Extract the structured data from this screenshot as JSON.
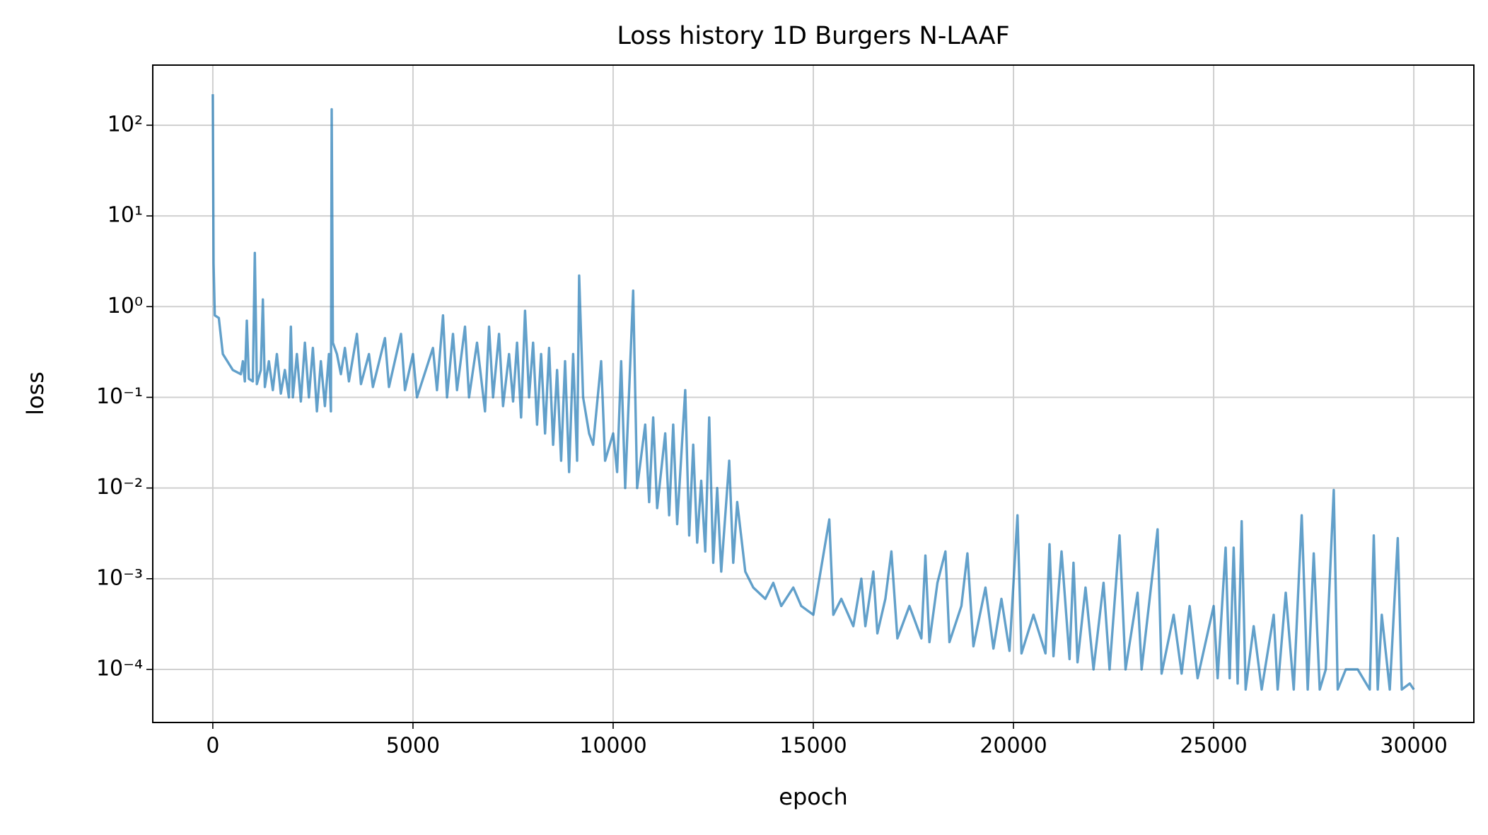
{
  "chart_data": {
    "type": "line",
    "title": "Loss history 1D Burgers N-LAAF",
    "x_label": "epoch",
    "y_label": "loss",
    "log_y": true,
    "grid": true,
    "xlim": [
      -1500,
      31500
    ],
    "xticks": [
      0,
      5000,
      10000,
      15000,
      20000,
      25000,
      30000
    ],
    "ylim": [
      2.6e-05,
      460
    ],
    "yticks": [
      {
        "value": 0.0001,
        "label": "10⁻⁴"
      },
      {
        "value": 0.001,
        "label": "10⁻³"
      },
      {
        "value": 0.01,
        "label": "10⁻²"
      },
      {
        "value": 0.1,
        "label": "10⁻¹"
      },
      {
        "value": 1,
        "label": "10⁰"
      },
      {
        "value": 10,
        "label": "10¹"
      },
      {
        "value": 100,
        "label": "10²"
      }
    ],
    "x": [
      0,
      20,
      50,
      150,
      250,
      500,
      700,
      750,
      800,
      850,
      900,
      1000,
      1050,
      1100,
      1200,
      1250,
      1300,
      1400,
      1500,
      1600,
      1700,
      1800,
      1900,
      1950,
      2000,
      2100,
      2200,
      2300,
      2400,
      2500,
      2600,
      2700,
      2800,
      2900,
      2950,
      2970,
      3000,
      3100,
      3200,
      3300,
      3400,
      3600,
      3700,
      3900,
      4000,
      4300,
      4400,
      4700,
      4800,
      5000,
      5100,
      5500,
      5600,
      5750,
      5850,
      6000,
      6100,
      6300,
      6400,
      6600,
      6800,
      6900,
      7000,
      7150,
      7250,
      7400,
      7500,
      7600,
      7700,
      7800,
      7900,
      8000,
      8100,
      8200,
      8300,
      8400,
      8500,
      8600,
      8700,
      8800,
      8900,
      9000,
      9100,
      9150,
      9250,
      9400,
      9500,
      9700,
      9800,
      10000,
      10100,
      10200,
      10300,
      10500,
      10600,
      10800,
      10900,
      11000,
      11100,
      11300,
      11400,
      11500,
      11600,
      11800,
      11900,
      12000,
      12100,
      12200,
      12300,
      12400,
      12500,
      12600,
      12700,
      12900,
      13000,
      13100,
      13300,
      13500,
      13800,
      14000,
      14200,
      14500,
      14700,
      15000,
      15400,
      15500,
      15700,
      16000,
      16200,
      16300,
      16500,
      16600,
      16800,
      16950,
      17100,
      17400,
      17700,
      17800,
      17900,
      18100,
      18300,
      18400,
      18700,
      18850,
      19000,
      19300,
      19500,
      19700,
      19900,
      20100,
      20200,
      20500,
      20800,
      20900,
      21000,
      21200,
      21400,
      21500,
      21600,
      21800,
      22000,
      22250,
      22400,
      22650,
      22800,
      23100,
      23200,
      23600,
      23700,
      24000,
      24200,
      24400,
      24600,
      25000,
      25100,
      25300,
      25400,
      25500,
      25600,
      25700,
      25800,
      26000,
      26200,
      26500,
      26600,
      26800,
      27000,
      27200,
      27350,
      27500,
      27650,
      27800,
      28000,
      28100,
      28300,
      28600,
      28900,
      29000,
      29100,
      29200,
      29400,
      29600,
      29700,
      29900,
      30000
    ],
    "series": [
      {
        "name": "loss",
        "color": "#1f77b4",
        "values": [
          220,
          3,
          0.8,
          0.75,
          0.3,
          0.2,
          0.18,
          0.25,
          0.15,
          0.7,
          0.16,
          0.15,
          3.9,
          0.14,
          0.2,
          1.2,
          0.13,
          0.25,
          0.12,
          0.3,
          0.11,
          0.2,
          0.1,
          0.6,
          0.1,
          0.3,
          0.09,
          0.4,
          0.1,
          0.35,
          0.07,
          0.25,
          0.08,
          0.3,
          0.07,
          150,
          0.4,
          0.3,
          0.18,
          0.35,
          0.15,
          0.5,
          0.14,
          0.3,
          0.13,
          0.45,
          0.13,
          0.5,
          0.12,
          0.3,
          0.1,
          0.35,
          0.12,
          0.8,
          0.1,
          0.5,
          0.12,
          0.6,
          0.1,
          0.4,
          0.07,
          0.6,
          0.1,
          0.5,
          0.08,
          0.3,
          0.09,
          0.4,
          0.06,
          0.9,
          0.1,
          0.4,
          0.05,
          0.3,
          0.04,
          0.35,
          0.03,
          0.2,
          0.02,
          0.25,
          0.015,
          0.3,
          0.02,
          2.2,
          0.1,
          0.04,
          0.03,
          0.25,
          0.02,
          0.04,
          0.015,
          0.25,
          0.01,
          1.5,
          0.01,
          0.05,
          0.007,
          0.06,
          0.006,
          0.04,
          0.005,
          0.05,
          0.004,
          0.12,
          0.003,
          0.03,
          0.0025,
          0.012,
          0.002,
          0.06,
          0.0015,
          0.01,
          0.0012,
          0.02,
          0.0015,
          0.007,
          0.0012,
          0.0008,
          0.0006,
          0.0009,
          0.0005,
          0.0008,
          0.0005,
          0.0004,
          0.0045,
          0.0004,
          0.0006,
          0.0003,
          0.001,
          0.0003,
          0.0012,
          0.00025,
          0.0006,
          0.002,
          0.00022,
          0.0005,
          0.00022,
          0.0018,
          0.0002,
          0.0009,
          0.002,
          0.0002,
          0.0005,
          0.0019,
          0.00018,
          0.0008,
          0.00017,
          0.0006,
          0.00016,
          0.005,
          0.00015,
          0.0004,
          0.00015,
          0.0024,
          0.00014,
          0.002,
          0.00013,
          0.0015,
          0.00012,
          0.0008,
          0.0001,
          0.0009,
          0.0001,
          0.003,
          0.0001,
          0.0007,
          0.0001,
          0.0035,
          9e-05,
          0.0004,
          9e-05,
          0.0005,
          8e-05,
          0.0005,
          8e-05,
          0.0022,
          8e-05,
          0.0022,
          7e-05,
          0.0043,
          6e-05,
          0.0003,
          6e-05,
          0.0004,
          6e-05,
          0.0007,
          6e-05,
          0.005,
          6e-05,
          0.0019,
          6e-05,
          0.0001,
          0.0095,
          6e-05,
          0.0001,
          0.0001,
          6e-05,
          0.003,
          6e-05,
          0.0004,
          6e-05,
          0.0028,
          6e-05,
          7e-05,
          6e-05
        ]
      }
    ]
  }
}
